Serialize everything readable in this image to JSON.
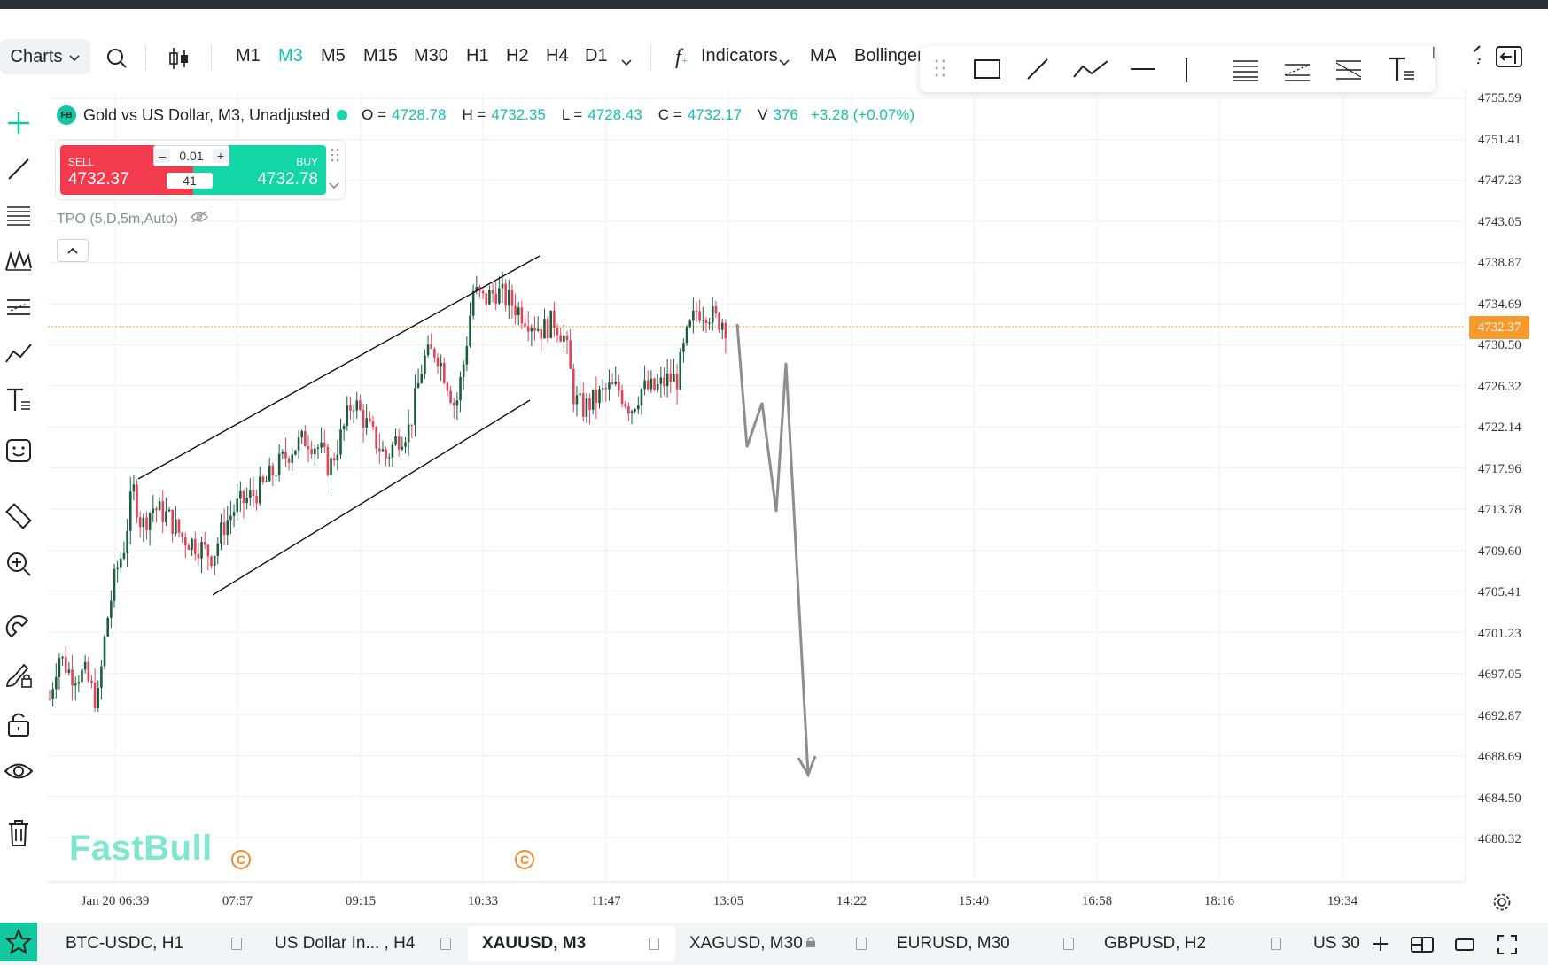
{
  "toolbar": {
    "charts_label": "Charts",
    "timeframes": [
      "M1",
      "M3",
      "M5",
      "M15",
      "M30",
      "H1",
      "H2",
      "H4",
      "D1"
    ],
    "active_timeframe": "M3",
    "indicators_label": "Indicators",
    "ma_label": "MA",
    "bollinger_label": "Bollinger"
  },
  "legend": {
    "logo": "FB",
    "symbol_title": "Gold vs US Dollar, M3, Unadjusted",
    "o_label": "O =",
    "o_value": "4728.78",
    "h_label": "H =",
    "h_value": "4732.35",
    "l_label": "L =",
    "l_value": "4728.43",
    "c_label": "C =",
    "c_value": "4732.17",
    "v_label": "V",
    "v_value": "376",
    "change": "+3.28 (+0.07%)"
  },
  "trade_panel": {
    "sell_label": "SELL",
    "sell_price": "4732.37",
    "buy_label": "BUY",
    "buy_price": "4732.78",
    "quantity": "0.01",
    "spread": "41"
  },
  "indicator": {
    "tpo_label": "TPO (5,D,5m,Auto)"
  },
  "watermark": "FastBull",
  "price_axis": {
    "ticks": [
      "4755.59",
      "4751.41",
      "4747.23",
      "4743.05",
      "4738.87",
      "4734.69",
      "4730.50",
      "4726.32",
      "4722.14",
      "4717.96",
      "4713.78",
      "4709.60",
      "4705.41",
      "4701.23",
      "4697.05",
      "4692.87",
      "4688.69",
      "4684.50",
      "4680.32"
    ],
    "current_price": "4732.37"
  },
  "time_axis": {
    "ticks": [
      "Jan 20 06:39",
      "07:57",
      "09:15",
      "10:33",
      "11:47",
      "13:05",
      "14:22",
      "15:40",
      "16:58",
      "18:16",
      "19:34"
    ]
  },
  "bottom_tabs": [
    {
      "label": "BTC-USDC, H1"
    },
    {
      "label": "US Dollar In... , H4"
    },
    {
      "label": "XAUUSD, M3",
      "active": true
    },
    {
      "label": "XAGUSD, M30"
    },
    {
      "label": "EURUSD, M30"
    },
    {
      "label": "GBPUSD, H2"
    },
    {
      "label": "US 30"
    }
  ],
  "colors": {
    "accent": "#11c5a3",
    "bull_candle": "#1b5e3f",
    "bear_candle": "#e0435a",
    "sell": "#f23b4d",
    "buy": "#12d6a6",
    "price_line": "#f59a2d"
  },
  "icons": [
    "search-icon",
    "candlestick-icon",
    "function-icon",
    "crosshair-icon",
    "trendline-icon",
    "fib-icon",
    "pattern-icon",
    "horizontal-lines-icon",
    "path-icon",
    "text-icon",
    "emoji-icon",
    "ruler-icon",
    "zoom-in-icon",
    "magnet-icon",
    "brush-lock-icon",
    "unlock-icon",
    "eye-icon",
    "trash-icon",
    "settings-icon",
    "star-icon"
  ]
}
